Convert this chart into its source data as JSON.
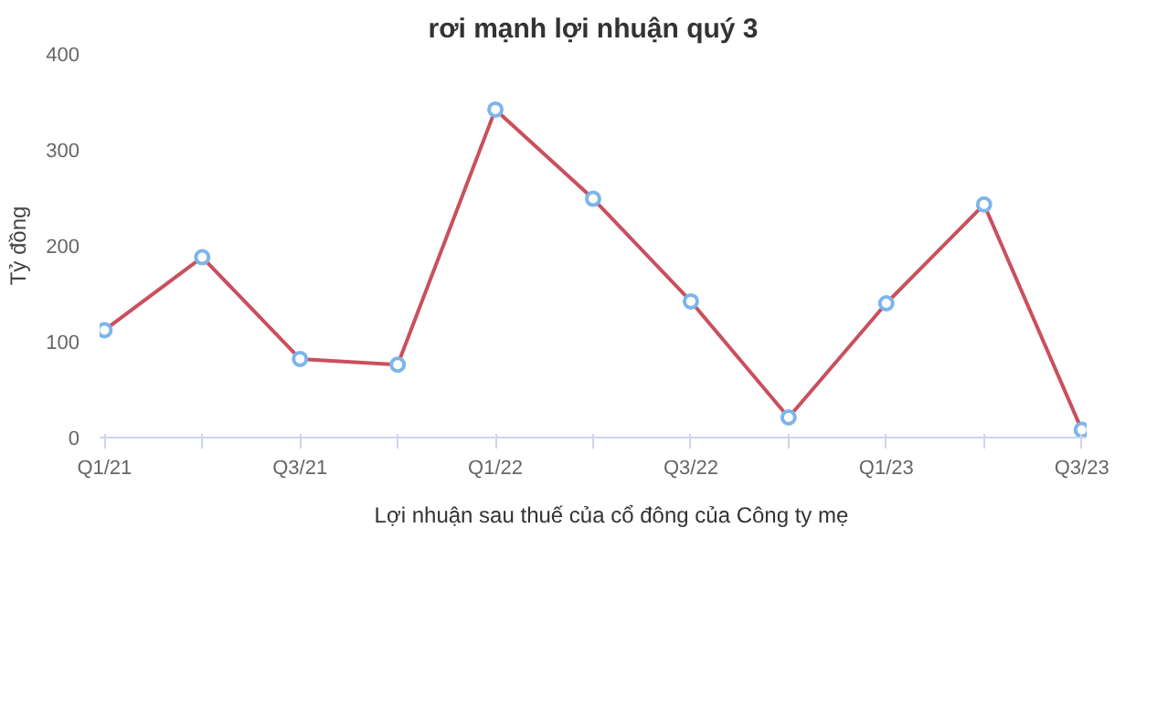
{
  "chart_data": {
    "type": "line",
    "title": "rơi mạnh lợi nhuận quý 3",
    "ylabel": "Tỷ đồng",
    "categories": [
      "Q1/21",
      null,
      "Q3/21",
      null,
      "Q1/22",
      null,
      "Q3/22",
      null,
      "Q1/23",
      null,
      "Q3/23"
    ],
    "series": [
      {
        "name": "Lợi nhuận sau thuế của cổ đông của Công ty mẹ",
        "color": "#c9505d",
        "values": [
          112,
          188,
          82,
          76,
          342,
          249,
          142,
          21,
          140,
          243,
          8
        ]
      }
    ],
    "ylim": [
      0,
      400
    ],
    "yticks": [
      0,
      100,
      200,
      300,
      400
    ],
    "grid": false,
    "legend": "bottom",
    "marker": "circle",
    "line_style": "solid"
  }
}
